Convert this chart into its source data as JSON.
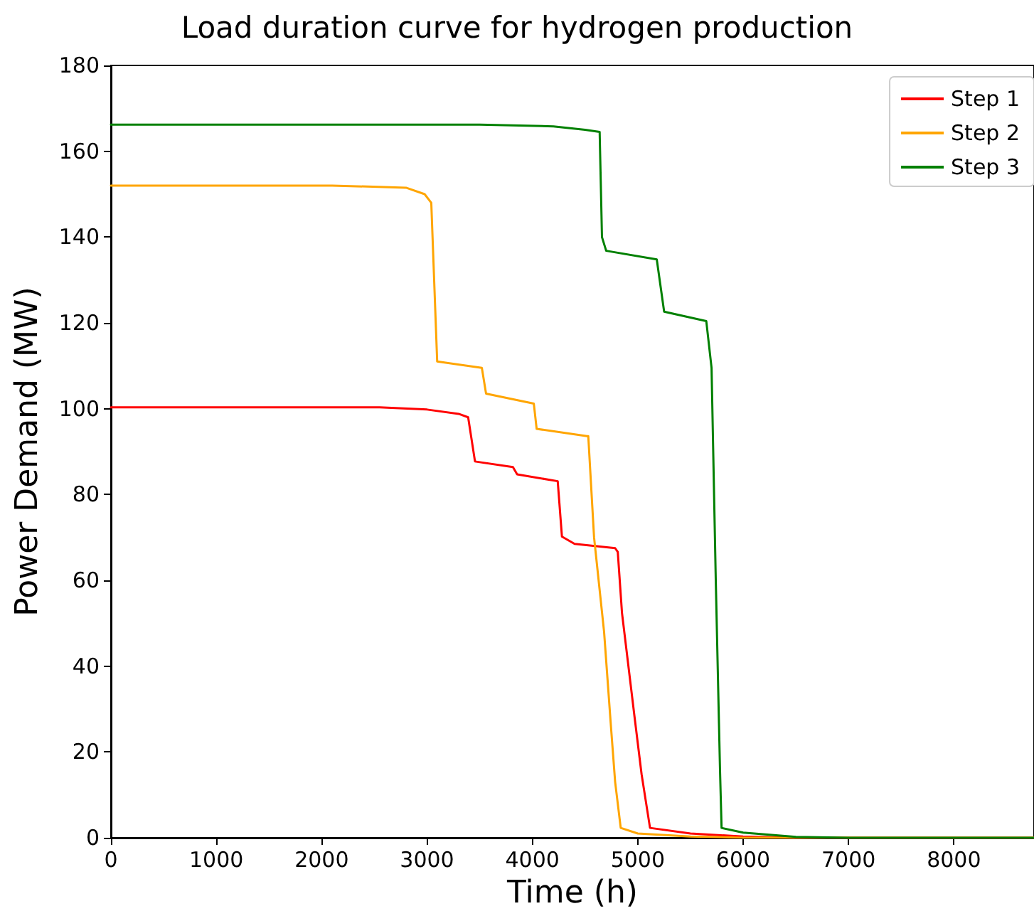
{
  "chart_data": {
    "type": "line",
    "title": "Load duration curve for hydrogen production",
    "xlabel": "Time (h)",
    "ylabel": "Power Demand (MW)",
    "xlim": [
      0,
      8760
    ],
    "xticks": [
      0,
      1000,
      2000,
      3000,
      4000,
      5000,
      6000,
      7000,
      8000
    ],
    "ylim": [
      0,
      180
    ],
    "yticks": [
      0,
      20,
      40,
      60,
      80,
      100,
      120,
      140,
      160,
      180
    ],
    "grid": false,
    "legend": "top right",
    "marker": "none",
    "line_style": "solid",
    "series": [
      {
        "name": "Step 1",
        "color": "#ff0000",
        "x": [
          0,
          2550,
          3000,
          3300,
          3390,
          3455,
          3815,
          3855,
          4240,
          4280,
          4400,
          4785,
          4810,
          4850,
          4970,
          5036,
          5116,
          5500,
          6000,
          6500,
          8760
        ],
        "values": [
          100.3,
          100.3,
          99.8,
          98.8,
          98,
          87.7,
          86.4,
          84.7,
          83.1,
          70.2,
          68.5,
          67.5,
          66.6,
          52.4,
          28,
          14.8,
          2.3,
          1,
          0.3,
          0,
          0
        ]
      },
      {
        "name": "Step 2",
        "color": "#ffa500",
        "x": [
          0,
          2100,
          2800,
          2977,
          3040,
          3096,
          3520,
          3560,
          4013,
          4040,
          4518,
          4530,
          4585,
          4680,
          4745,
          4785,
          4838,
          5000,
          5500,
          6000,
          8760
        ],
        "values": [
          152,
          152,
          151.5,
          150,
          148,
          111,
          109.5,
          103.5,
          101.2,
          95.3,
          93.6,
          93.6,
          70,
          48,
          26,
          13,
          2.3,
          1,
          0.3,
          0,
          0
        ]
      },
      {
        "name": "Step 3",
        "color": "#008000",
        "x": [
          0,
          3500,
          4200,
          4500,
          4638,
          4660,
          4700,
          5180,
          5250,
          5650,
          5700,
          5740,
          5780,
          5795,
          6000,
          6500,
          7000,
          8760
        ],
        "values": [
          166.2,
          166.2,
          165.8,
          165,
          164.5,
          140,
          136.8,
          134.8,
          122.6,
          120.4,
          109.5,
          60,
          16,
          2.3,
          1.2,
          0.2,
          0,
          0
        ]
      }
    ]
  }
}
